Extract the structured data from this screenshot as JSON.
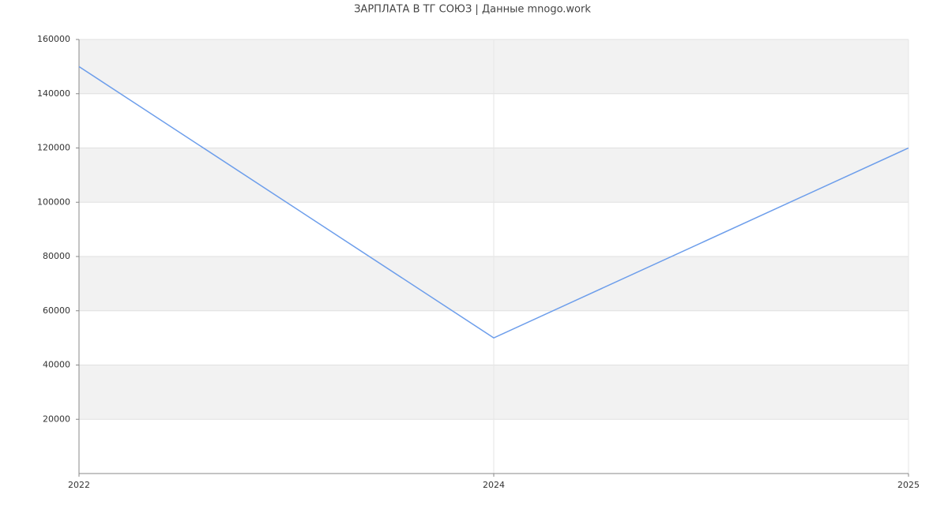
{
  "chart_data": {
    "type": "line",
    "title": "ЗАРПЛАТА В ТГ СОЮЗ | Данные mnogo.work",
    "categories": [
      "2022",
      "2024",
      "2025"
    ],
    "values": [
      150000,
      50000,
      120000
    ],
    "color": "#6d9eeb",
    "ylim": [
      0,
      160000
    ],
    "yticks": [
      20000,
      40000,
      60000,
      80000,
      100000,
      120000,
      140000,
      160000
    ],
    "grid": true
  }
}
